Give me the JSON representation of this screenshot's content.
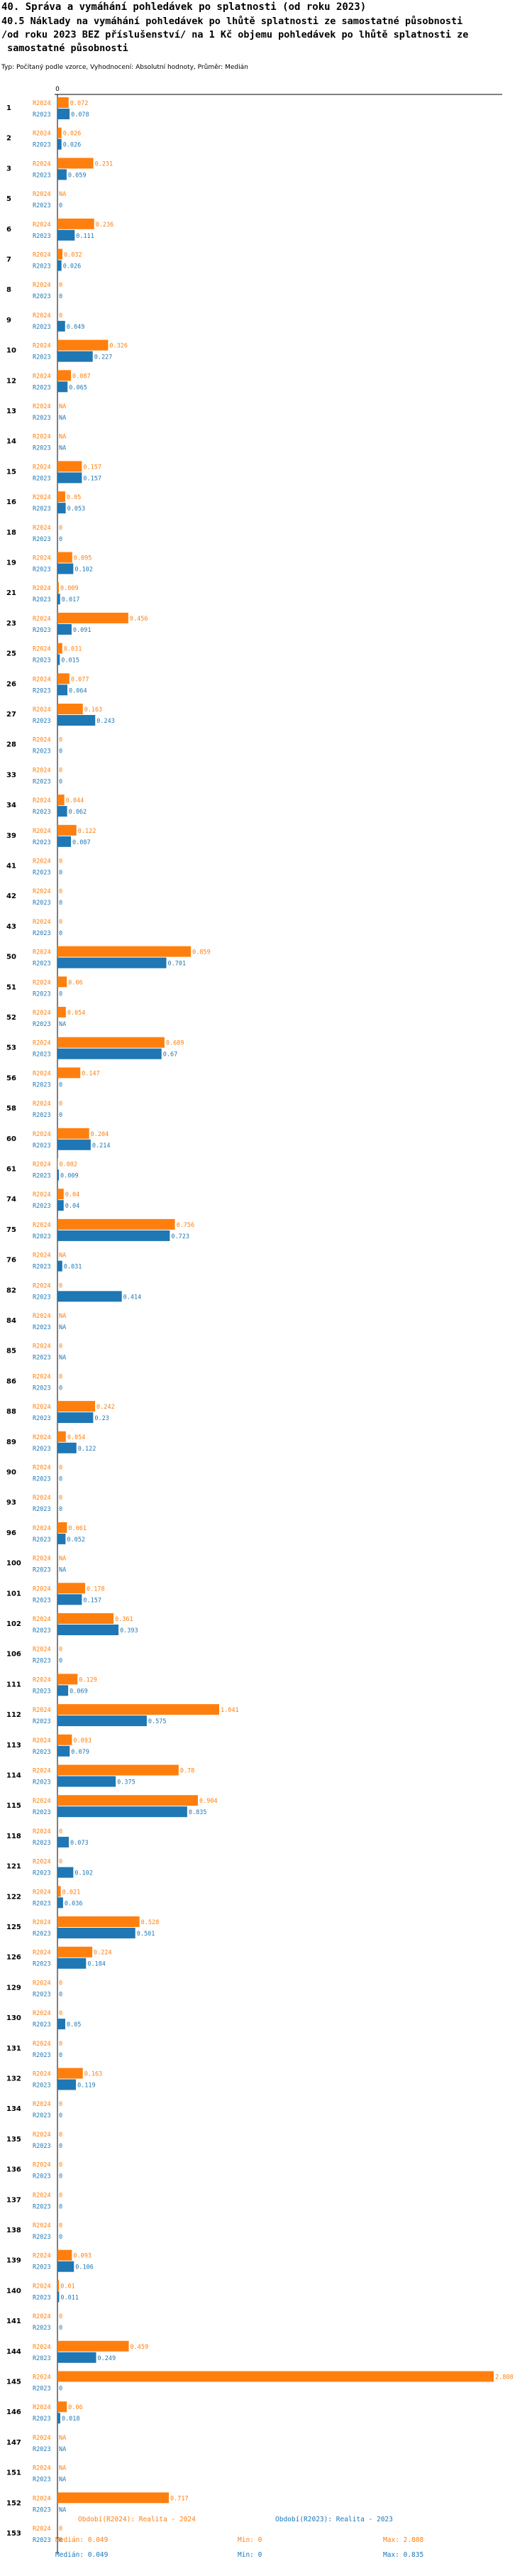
{
  "header": {
    "title": "40. Správa a vymáhání pohledávek po splatnosti (od roku 2023)",
    "subtitle_lines": [
      "40.5 Náklady na vymáhání pohledávek po lhůtě splatnosti ze samostatné působnosti",
      "/od roku 2023 BEZ příslušenství/ na 1 Kč objemu pohledávek po lhůtě splatnosti ze",
      " samostatné působnosti"
    ],
    "meta": "Typ: Počítaný podle vzorce, Vyhodnocení: Absolutní hodnoty, Průměr: Medián"
  },
  "chart_data": {
    "type": "bar",
    "orientation": "horizontal",
    "axis_zero_label": "0",
    "xlim": [
      0,
      2.808
    ],
    "series": [
      {
        "name": "R2024",
        "color": "#ff7f0e"
      },
      {
        "name": "R2023",
        "color": "#1f77b4"
      }
    ],
    "categories": [
      "1",
      "2",
      "3",
      "5",
      "6",
      "7",
      "8",
      "9",
      "10",
      "12",
      "13",
      "14",
      "15",
      "16",
      "18",
      "19",
      "21",
      "23",
      "25",
      "26",
      "27",
      "28",
      "33",
      "34",
      "39",
      "41",
      "42",
      "43",
      "50",
      "51",
      "52",
      "53",
      "56",
      "58",
      "60",
      "61",
      "74",
      "75",
      "76",
      "82",
      "84",
      "85",
      "86",
      "88",
      "89",
      "90",
      "93",
      "96",
      "100",
      "101",
      "102",
      "106",
      "111",
      "112",
      "113",
      "114",
      "115",
      "118",
      "121",
      "122",
      "125",
      "126",
      "129",
      "130",
      "131",
      "132",
      "134",
      "135",
      "136",
      "137",
      "138",
      "139",
      "140",
      "141",
      "144",
      "145",
      "146",
      "147",
      "151",
      "152",
      "153"
    ],
    "values_2024": [
      "0.072",
      "0.026",
      "0.231",
      "NA",
      "0.236",
      "0.032",
      "0",
      "0",
      "0.326",
      "0.087",
      "NA",
      "NA",
      "0.157",
      "0.05",
      "0",
      "0.095",
      "0.009",
      "0.456",
      "0.031",
      "0.077",
      "0.163",
      "0",
      "0",
      "0.044",
      "0.122",
      "0",
      "0",
      "0",
      "0.859",
      "0.06",
      "0.054",
      "0.689",
      "0.147",
      "0",
      "0.204",
      "0.002",
      "0.04",
      "0.756",
      "NA",
      "0",
      "NA",
      "0",
      "0",
      "0.242",
      "0.054",
      "0",
      "0",
      "0.061",
      "NA",
      "0.178",
      "0.361",
      "0",
      "0.129",
      "1.041",
      "0.093",
      "0.78",
      "0.904",
      "0",
      "0",
      "0.021",
      "0.528",
      "0.224",
      "0",
      "0",
      "0",
      "0.163",
      "0",
      "0",
      "0",
      "0",
      "0",
      "0.093",
      "0.01",
      "0",
      "0.459",
      "2.808",
      "0.06",
      "NA",
      "NA",
      "0.717",
      "0"
    ],
    "values_2023": [
      "0.078",
      "0.026",
      "0.059",
      "0",
      "0.111",
      "0.026",
      "0",
      "0.049",
      "0.227",
      "0.065",
      "NA",
      "NA",
      "0.157",
      "0.053",
      "0",
      "0.102",
      "0.017",
      "0.091",
      "0.015",
      "0.064",
      "0.243",
      "0",
      "0",
      "0.062",
      "0.087",
      "0",
      "0",
      "0",
      "0.701",
      "0",
      "NA",
      "0.67",
      "0",
      "0",
      "0.214",
      "0.009",
      "0.04",
      "0.723",
      "0.031",
      "0.414",
      "NA",
      "NA",
      "0",
      "0.23",
      "0.122",
      "0",
      "0",
      "0.052",
      "NA",
      "0.157",
      "0.393",
      "0",
      "0.069",
      "0.575",
      "0.079",
      "0.375",
      "0.835",
      "0.073",
      "0.102",
      "0.036",
      "0.501",
      "0.184",
      "0",
      "0.05",
      "0",
      "0.119",
      "0",
      "0",
      "0",
      "0",
      "0",
      "0.106",
      "0.011",
      "0",
      "0.249",
      "0",
      "0.018",
      "NA",
      "NA",
      "NA",
      "0"
    ],
    "legend": {
      "r2024": {
        "title": "Období(R2024): Realita - 2024",
        "median": "Medián: 0.049",
        "min": "Min: 0",
        "max": "Max: 2.808"
      },
      "r2023": {
        "title": "Období(R2023): Realita - 2023",
        "median": "Medián: 0.049",
        "min": "Min: 0",
        "max": "Max: 0.835"
      }
    }
  }
}
